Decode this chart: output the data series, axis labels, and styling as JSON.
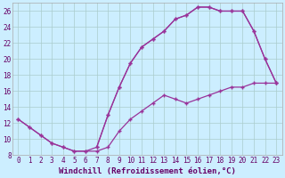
{
  "xlabel": "Windchill (Refroidissement éolien,°C)",
  "bg_color": "#cceeff",
  "line_color": "#993399",
  "grid_color": "#aacccc",
  "xlim": [
    -0.5,
    23.5
  ],
  "ylim": [
    8,
    27
  ],
  "xticks": [
    0,
    1,
    2,
    3,
    4,
    5,
    6,
    7,
    8,
    9,
    10,
    11,
    12,
    13,
    14,
    15,
    16,
    17,
    18,
    19,
    20,
    21,
    22,
    23
  ],
  "yticks": [
    8,
    10,
    12,
    14,
    16,
    18,
    20,
    22,
    24,
    26
  ],
  "line1_x": [
    0,
    1,
    2,
    3,
    4,
    5,
    6,
    7,
    8,
    9,
    10,
    11,
    12,
    13,
    14,
    15,
    16,
    17,
    18,
    19,
    20,
    21,
    22,
    23
  ],
  "line1_y": [
    12.5,
    11.5,
    10.5,
    9.5,
    9.0,
    8.5,
    8.5,
    9.0,
    13.0,
    16.5,
    19.5,
    21.5,
    22.5,
    23.5,
    25.0,
    25.5,
    26.5,
    26.5,
    26.0,
    26.0,
    26.0,
    23.5,
    20.0,
    17.0
  ],
  "line2_x": [
    0,
    1,
    2,
    3,
    4,
    5,
    6,
    7,
    8,
    9,
    10,
    11,
    12,
    13,
    14,
    15,
    16,
    17,
    18,
    19,
    20,
    21,
    22,
    23
  ],
  "line2_y": [
    12.5,
    11.5,
    10.5,
    9.5,
    9.0,
    8.5,
    8.5,
    8.5,
    9.0,
    11.0,
    12.5,
    13.5,
    14.5,
    15.5,
    15.0,
    14.5,
    15.0,
    15.5,
    16.0,
    16.5,
    16.5,
    17.0,
    17.0,
    17.0
  ],
  "line3_x": [
    7,
    8,
    9,
    10,
    11,
    12,
    13,
    14,
    15,
    16,
    17,
    18,
    19,
    20,
    21,
    22,
    23
  ],
  "line3_y": [
    9.0,
    13.0,
    16.5,
    19.5,
    21.5,
    22.5,
    23.5,
    25.0,
    25.5,
    26.5,
    26.5,
    26.0,
    26.0,
    26.0,
    23.5,
    20.0,
    17.0
  ],
  "tick_color": "#660066",
  "xlabel_fontsize": 6.5,
  "tick_fontsize": 5.5
}
